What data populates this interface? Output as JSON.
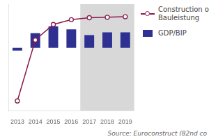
{
  "chart_data": {
    "type": "bar",
    "categories": [
      "2013",
      "2014",
      "2015",
      "2016",
      "2017",
      "2018",
      "2019"
    ],
    "series": [
      {
        "name": "Construction o\nBauleistung",
        "type": "line",
        "color": "#8b1a4a",
        "marker": "circle",
        "values": [
          -5.5,
          0.8,
          2.4,
          2.9,
          3.1,
          3.15,
          3.2
        ]
      },
      {
        "name": "GDP/BIP",
        "type": "bar",
        "color": "#2e3192",
        "values": [
          -0.3,
          1.5,
          2.2,
          1.9,
          1.3,
          1.6,
          1.6
        ]
      }
    ],
    "ylim": [
      -6.5,
      4.5
    ],
    "grid": false,
    "legend": "right",
    "tick_labels": "x",
    "shaded": {
      "from": "2017",
      "color": "#d8d8d8"
    },
    "annotations": [
      "Source: Euroconstruct (82nd co"
    ]
  }
}
